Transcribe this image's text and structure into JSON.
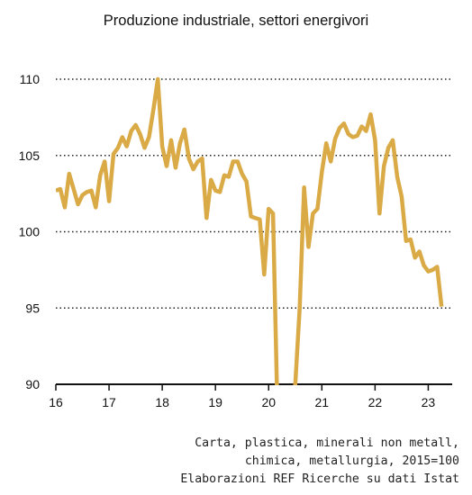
{
  "chart_data": {
    "type": "line",
    "title": "Produzione industriale, settori energivori",
    "xlabel": "",
    "ylabel": "",
    "ylim": [
      90,
      110
    ],
    "xlim": [
      2016,
      2023.45
    ],
    "y_ticks": [
      90,
      95,
      100,
      105,
      110
    ],
    "x_ticks": [
      2016,
      2017,
      2018,
      2019,
      2020,
      2021,
      2022,
      2023
    ],
    "x_tick_labels": [
      "16",
      "17",
      "18",
      "19",
      "20",
      "21",
      "22",
      "23"
    ],
    "grid": "dotted horizontal",
    "line_color": "#d9aa45",
    "series": [
      {
        "x": [
          2016.0,
          2016.083,
          2016.167,
          2016.25,
          2016.333,
          2016.417,
          2016.5,
          2016.583,
          2016.667,
          2016.75,
          2016.833,
          2016.917,
          2017.0,
          2017.083,
          2017.167,
          2017.25,
          2017.333,
          2017.417,
          2017.5,
          2017.583,
          2017.667,
          2017.75,
          2017.833,
          2017.917,
          2018.0,
          2018.083,
          2018.167,
          2018.25,
          2018.333,
          2018.417,
          2018.5,
          2018.583,
          2018.667,
          2018.75,
          2018.833,
          2018.917,
          2019.0,
          2019.083,
          2019.167,
          2019.25,
          2019.333,
          2019.417,
          2019.5,
          2019.583,
          2019.667,
          2019.75,
          2019.833,
          2019.917,
          2020.0,
          2020.083,
          2020.167,
          2020.25,
          2020.333,
          2020.417,
          2020.5,
          2020.583,
          2020.667,
          2020.75,
          2020.833,
          2020.917,
          2021.0,
          2021.083,
          2021.167,
          2021.25,
          2021.333,
          2021.417,
          2021.5,
          2021.583,
          2021.667,
          2021.75,
          2021.833,
          2021.917,
          2022.0,
          2022.083,
          2022.167,
          2022.25,
          2022.333,
          2022.417,
          2022.5,
          2022.583,
          2022.667,
          2022.75,
          2022.833,
          2022.917,
          2023.0,
          2023.083,
          2023.167,
          2023.25
        ],
        "values": [
          102.7,
          102.8,
          101.6,
          103.8,
          102.8,
          101.8,
          102.4,
          102.6,
          102.7,
          101.6,
          103.7,
          104.6,
          102.0,
          105.1,
          105.5,
          106.2,
          105.6,
          106.6,
          107.0,
          106.4,
          105.5,
          106.2,
          108.0,
          110.0,
          105.6,
          104.3,
          106.0,
          104.2,
          105.8,
          106.7,
          104.8,
          104.1,
          104.6,
          104.8,
          100.9,
          103.4,
          102.7,
          102.6,
          103.7,
          103.6,
          104.6,
          104.6,
          103.8,
          103.3,
          101.0,
          100.9,
          100.8,
          97.2,
          101.5,
          101.2,
          88.0,
          86.0,
          87.0,
          88.0,
          90.0,
          95.0,
          102.9,
          99.0,
          101.2,
          101.5,
          103.9,
          105.8,
          104.6,
          106.1,
          106.8,
          107.1,
          106.4,
          106.2,
          106.3,
          106.9,
          106.6,
          107.7,
          106.0,
          101.2,
          104.3,
          105.5,
          106.0,
          103.6,
          102.3,
          99.4,
          99.5,
          98.3,
          98.7,
          97.8,
          97.4,
          97.5,
          97.7,
          95.1
        ]
      }
    ]
  },
  "source": {
    "line1": "Carta, plastica, minerali non metall,",
    "line2": "chimica, metallurgia, 2015=100",
    "line3": "Elaborazioni REF Ricerche su dati Istat"
  }
}
